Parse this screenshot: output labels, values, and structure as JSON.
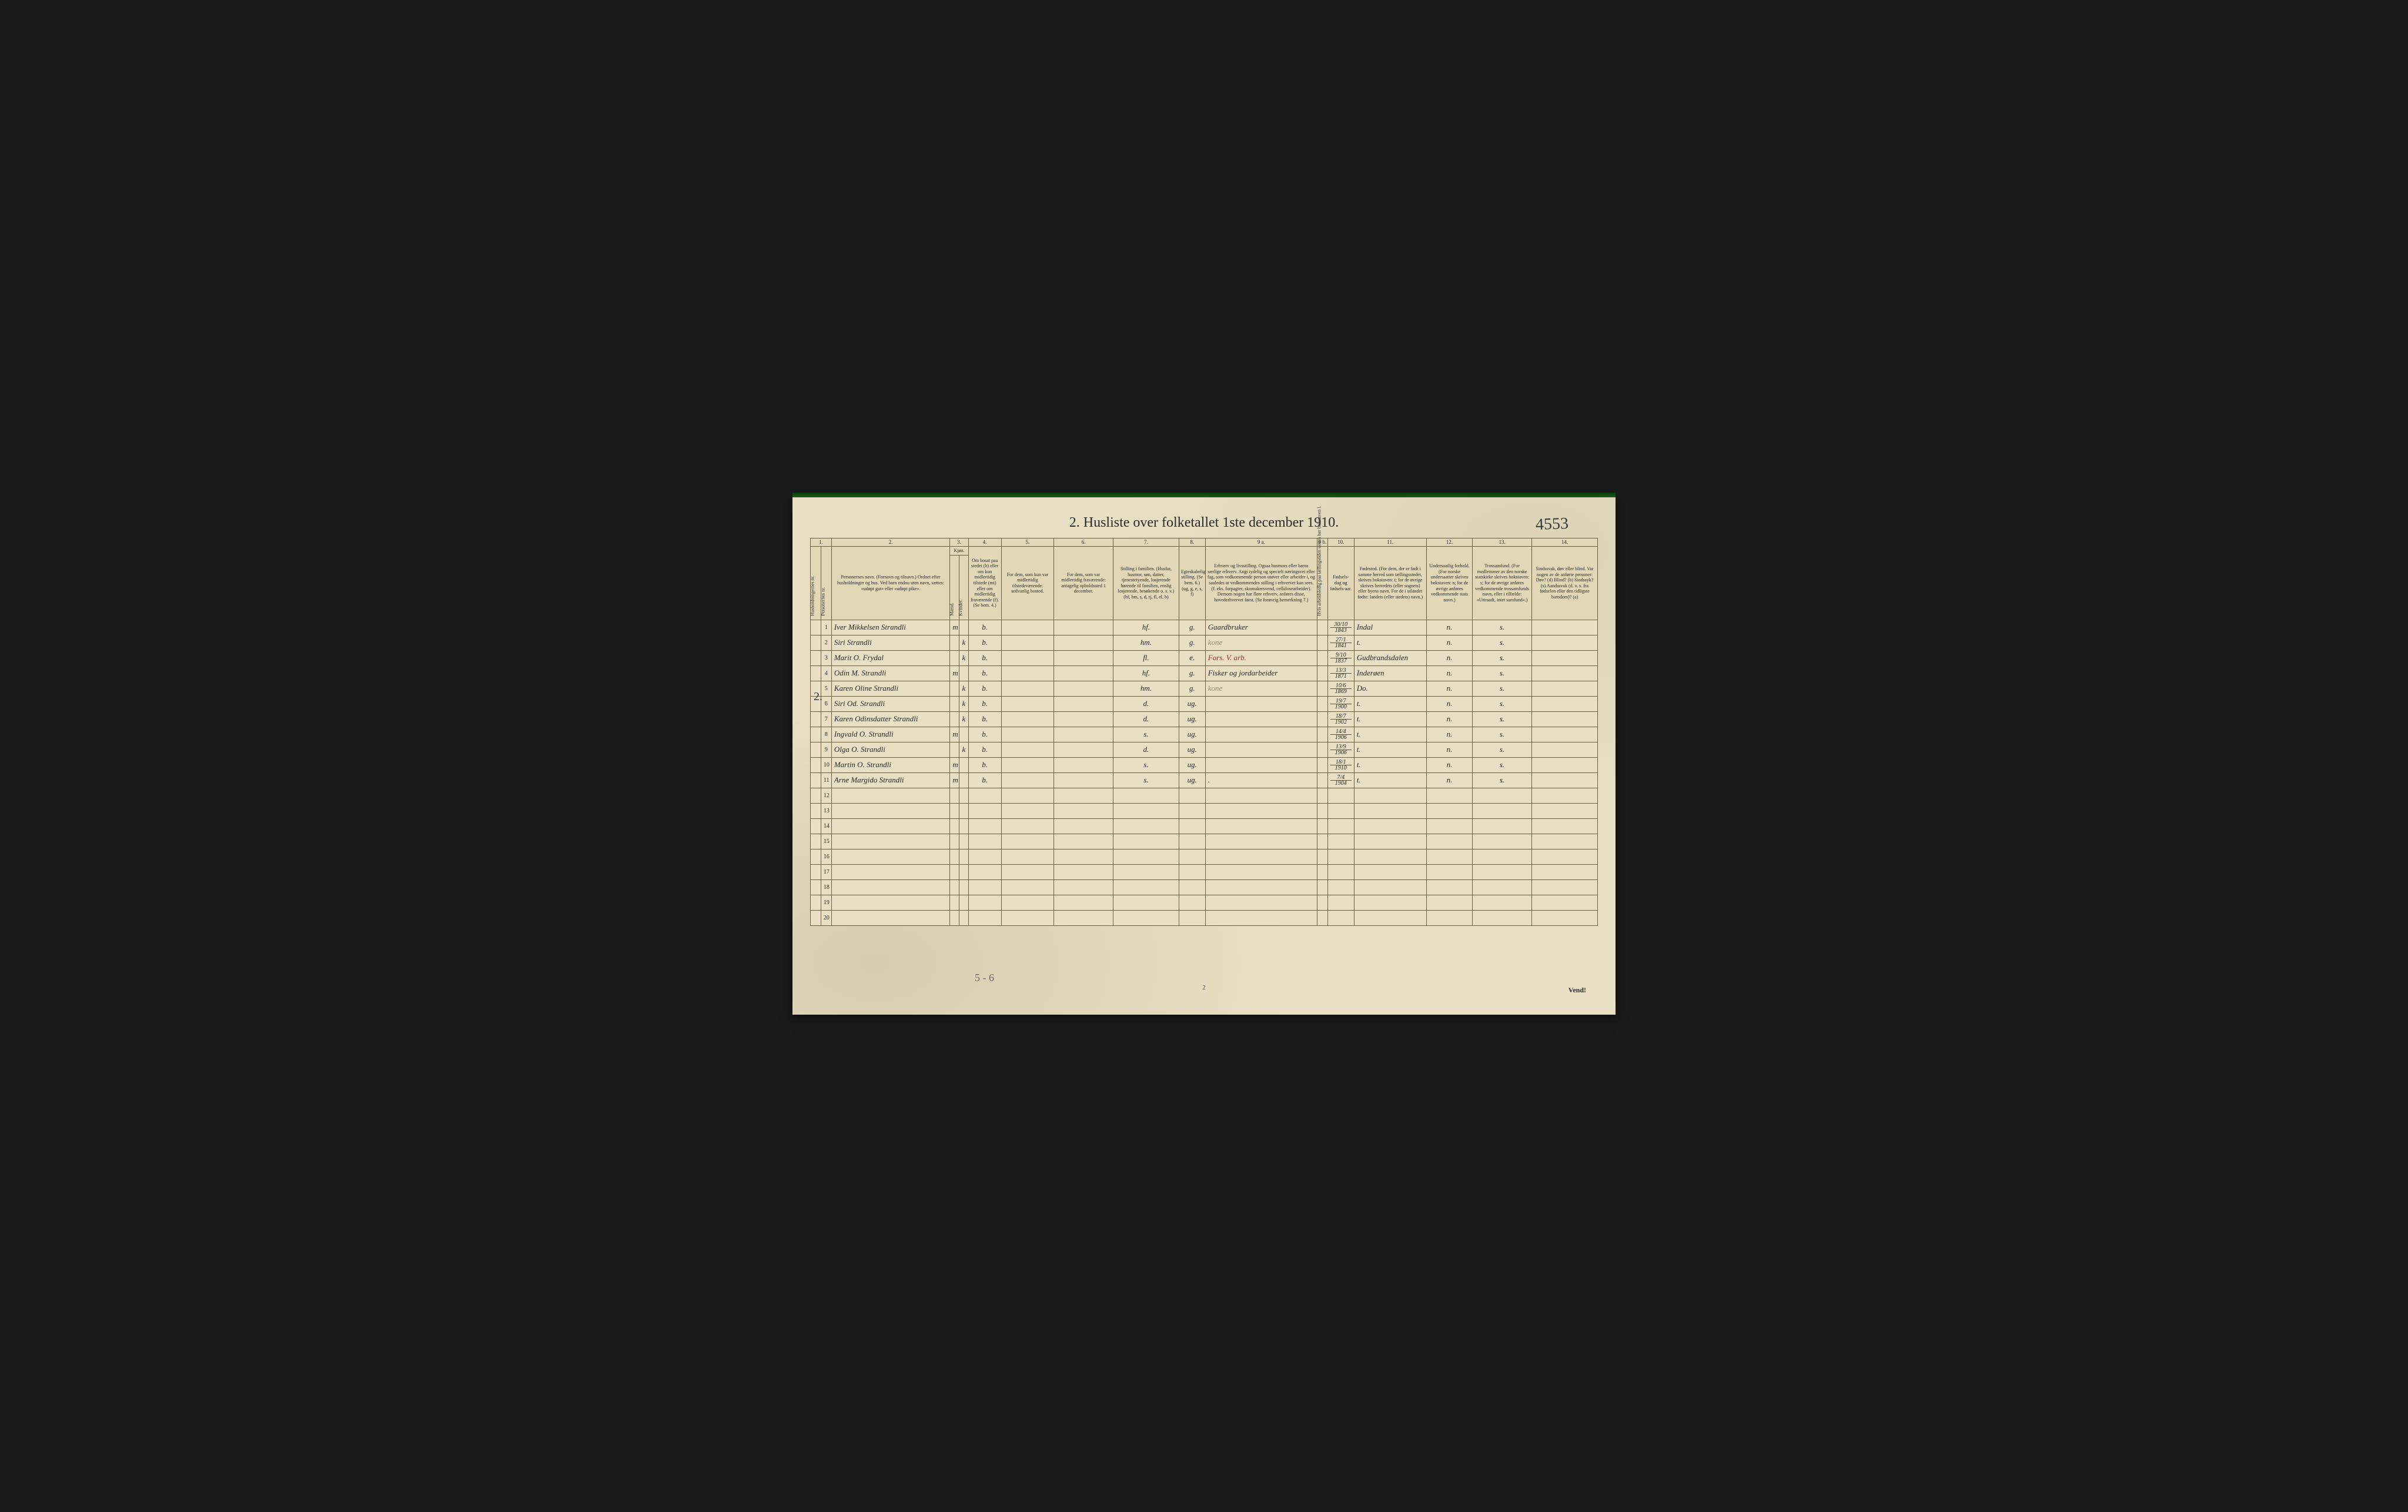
{
  "title": "2. Husliste over folketallet 1ste december 1910.",
  "annotation_topright": "4553",
  "margin_note": "2.",
  "bottom_note": "5 - 6",
  "page_number": "2",
  "vend": "Vend!",
  "colnums": [
    "1.",
    "2.",
    "3.",
    "4.",
    "5.",
    "6.",
    "7.",
    "8.",
    "9 a.",
    "9 b.",
    "10.",
    "11.",
    "12.",
    "13.",
    "14."
  ],
  "headers": {
    "hh": "Husholdningernes nr.",
    "pn": "Personernes nr.",
    "name": "Personernes navn.\n(Fornavn og tilnavn.)\nOrdnet efter husholdninger og hus.\nVed barn endnu uten navn, sættes: «udøpt gut» eller «udøpt pike».",
    "kjon": "Kjøn.",
    "m": "Mænd.",
    "k": "Kvinder.",
    "mk": "m. k.",
    "bosat": "Om bosat paa stedet (b) eller om kun midlertidig tilstede (mt) eller om midlertidig fraværende (f). (Se bem. 4.)",
    "mid1": "For dem, som kun var midlertidig tilstedeværende:\nsedvanlig bosted.",
    "mid2": "For dem, som var midlertidig fraværende:\nantagelig opholdssted 1 december.",
    "stilling": "Stilling i familien.\n(Husfar, husmor, søn, datter, tjenestetyende, losjerende hørende til familien, enslig losjerende, besøkende o. s. v.)\n(hf, hm, s, d, tj, fl, el, b)",
    "egt": "Egteskabelig stilling.\n(Se bem. 6.)\n(ug, g, e, s, f)",
    "erhverv": "Erhverv og livsstilling.\nOgsaa husmors eller barns særlige erhverv. Angi tydelig og specielt næringsvei eller fag, som vedkommende person utøver eller arbeider i, og saaledes at vedkommendes stilling i erhvervet kan sees. (f. eks. forpagter, skomakersvend, cellulosearbeider). Dersom nogen har flere erhverv, anføres disse, hovederhvervet først. (Se forøvrig bemerkning 7.)",
    "col9b": "Hvis arbeidsledig paa tællingstiden sættes her bokstaven l.",
    "dob": "Fødsels-dag og fødsels-aar.",
    "fodested": "Fødested.\n(For dem, der er født i samme herred som tællingsstedet, skrives bokstaven: t; for de øvrige skrives herredets (eller sognets) eller byens navn. For de i utlandet fødte: landets (eller stedets) navn.)",
    "under": "Undersaatlig forhold.\n(For norske undersaatter skrives bokstaven: n; for de øvrige anføres vedkommende stats navn.)",
    "tros": "Trossamfund.\n(For medlemmer av den norske statskirke skrives bokstaven: s; for de øvrige anføres vedkommende trossamfunds navn, eller i tilfælde: «Uttraadt, intet samfund».)",
    "sind": "Sindssvak, døv eller blind.\nVar nogen av de anførte personer:\nDøv? (d)\nBlind? (b)\nSindssyk? (s)\nAandssvak (d. v. s. fra fødselen eller den tidligste barndom)? (a)"
  },
  "rows": [
    {
      "n": "1",
      "name": "Iver Mikkelsen Strandli",
      "mk": "m",
      "b": "b.",
      "stilling": "hf.",
      "egt": "g.",
      "erhverv": "Gaardbruker",
      "dob_top": "30/10",
      "dob_bot": "1843",
      "fodested": "Indal",
      "under": "n.",
      "tros": "s."
    },
    {
      "n": "2",
      "name": "Siri Strandli",
      "mk": "k",
      "b": "b.",
      "stilling": "hm.",
      "egt": "g.",
      "erhverv": "kone",
      "erhverv_faded": true,
      "dob_top": "27/1",
      "dob_bot": "1841",
      "fodested": "t.",
      "under": "n.",
      "tros": "s."
    },
    {
      "n": "3",
      "name": "Marit O. Frydal",
      "mk": "k",
      "b": "b.",
      "stilling": "fl.",
      "egt": "e.",
      "erhverv": "Fors. V. arb.",
      "erhverv_red": true,
      "dob_top": "9/10",
      "dob_bot": "1837",
      "fodested": "Gudbrandsdalen",
      "under": "n.",
      "tros": "s."
    },
    {
      "n": "4",
      "name": "Odin M. Strandli",
      "mk": "m",
      "b": "b.",
      "stilling": "hf.",
      "egt": "g.",
      "erhverv": "Fisker og jordarbeider",
      "dob_top": "13/3",
      "dob_bot": "1871",
      "fodested": "Inderøen",
      "under": "n.",
      "tros": "s."
    },
    {
      "n": "5",
      "name": "Karen Oline Strandli",
      "mk": "k",
      "b": "b.",
      "stilling": "hm.",
      "egt": "g.",
      "erhverv": "kone",
      "erhverv_faded": true,
      "dob_top": "10/6",
      "dob_bot": "1869",
      "fodested": "Do.",
      "under": "n.",
      "tros": "s."
    },
    {
      "n": "6",
      "name": "Siri Od. Strandli",
      "mk": "k",
      "b": "b.",
      "stilling": "d.",
      "egt": "ug.",
      "erhverv": "",
      "dob_top": "19/7",
      "dob_bot": "1900",
      "fodested": "t.",
      "under": "n.",
      "tros": "s."
    },
    {
      "n": "7",
      "name": "Karen Odinsdatter Strandli",
      "mk": "k",
      "b": "b.",
      "stilling": "d.",
      "egt": "ug.",
      "erhverv": "",
      "dob_top": "18/7",
      "dob_bot": "1902",
      "fodested": "t.",
      "under": "n.",
      "tros": "s."
    },
    {
      "n": "8",
      "name": "Ingvald O. Strandli",
      "mk": "m",
      "b": "b.",
      "stilling": "s.",
      "egt": "ug.",
      "erhverv": "",
      "dob_top": "14/4",
      "dob_bot": "1906",
      "fodested": "t.",
      "under": "n.",
      "tros": "s."
    },
    {
      "n": "9",
      "name": "Olga O. Strandli",
      "mk": "k",
      "b": "b.",
      "stilling": "d.",
      "egt": "ug.",
      "erhverv": "",
      "dob_top": "13/9",
      "dob_bot": "1906",
      "fodested": "t.",
      "under": "n.",
      "tros": "s."
    },
    {
      "n": "10",
      "name": "Martin O. Strandli",
      "mk": "m",
      "b": "b.",
      "stilling": "s.",
      "egt": "ug.",
      "erhverv": "",
      "dob_top": "18/1",
      "dob_bot": "1910",
      "fodested": "t.",
      "under": "n.",
      "tros": "s."
    },
    {
      "n": "11",
      "name": "Arne Margido Strandli",
      "mk": "m",
      "b": "b.",
      "stilling": "s.",
      "egt": "ug.",
      "erhverv": ".",
      "dob_top": "7/4",
      "dob_bot": "1904",
      "fodested": "t.",
      "under": "n.",
      "tros": "s."
    }
  ],
  "empty_rows": [
    12,
    13,
    14,
    15,
    16,
    17,
    18,
    19,
    20
  ],
  "colors": {
    "paper": "#e8dfc4",
    "header_bg": "#e2d8b8",
    "border": "#6b5d3f",
    "ink": "#2a2a2a",
    "red_ink": "#a03030",
    "faded_ink": "#9a8a6a"
  }
}
